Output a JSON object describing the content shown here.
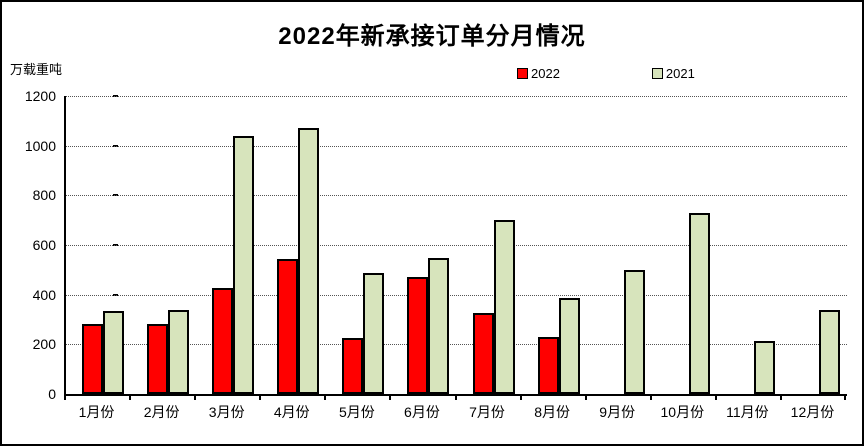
{
  "title": "2022年新承接订单分月情况",
  "unit_label": "万载重吨",
  "legend": {
    "items": [
      {
        "label": "2022",
        "color": "#FF0000"
      },
      {
        "label": "2021",
        "color": "#D7E4BC"
      }
    ]
  },
  "chart_data": {
    "type": "bar",
    "title": "2022年新承接订单分月情况",
    "ylabel": "万载重吨",
    "xlabel": "",
    "ylim": [
      0,
      1200
    ],
    "yticks": [
      0,
      200,
      400,
      600,
      800,
      1000,
      1200
    ],
    "grid": "horizontal-dotted",
    "legend_position": "top",
    "categories": [
      "1月份",
      "2月份",
      "3月份",
      "4月份",
      "5月份",
      "6月份",
      "7月份",
      "8月份",
      "9月份",
      "10月份",
      "11月份",
      "12月份"
    ],
    "series": [
      {
        "name": "2022",
        "color": "#FF0000",
        "values": [
          280,
          280,
          425,
          545,
          225,
          472,
          325,
          228,
          null,
          null,
          null,
          null
        ]
      },
      {
        "name": "2021",
        "color": "#D7E4BC",
        "values": [
          335,
          340,
          1040,
          1070,
          487,
          548,
          700,
          385,
          500,
          730,
          215,
          340
        ]
      }
    ]
  }
}
